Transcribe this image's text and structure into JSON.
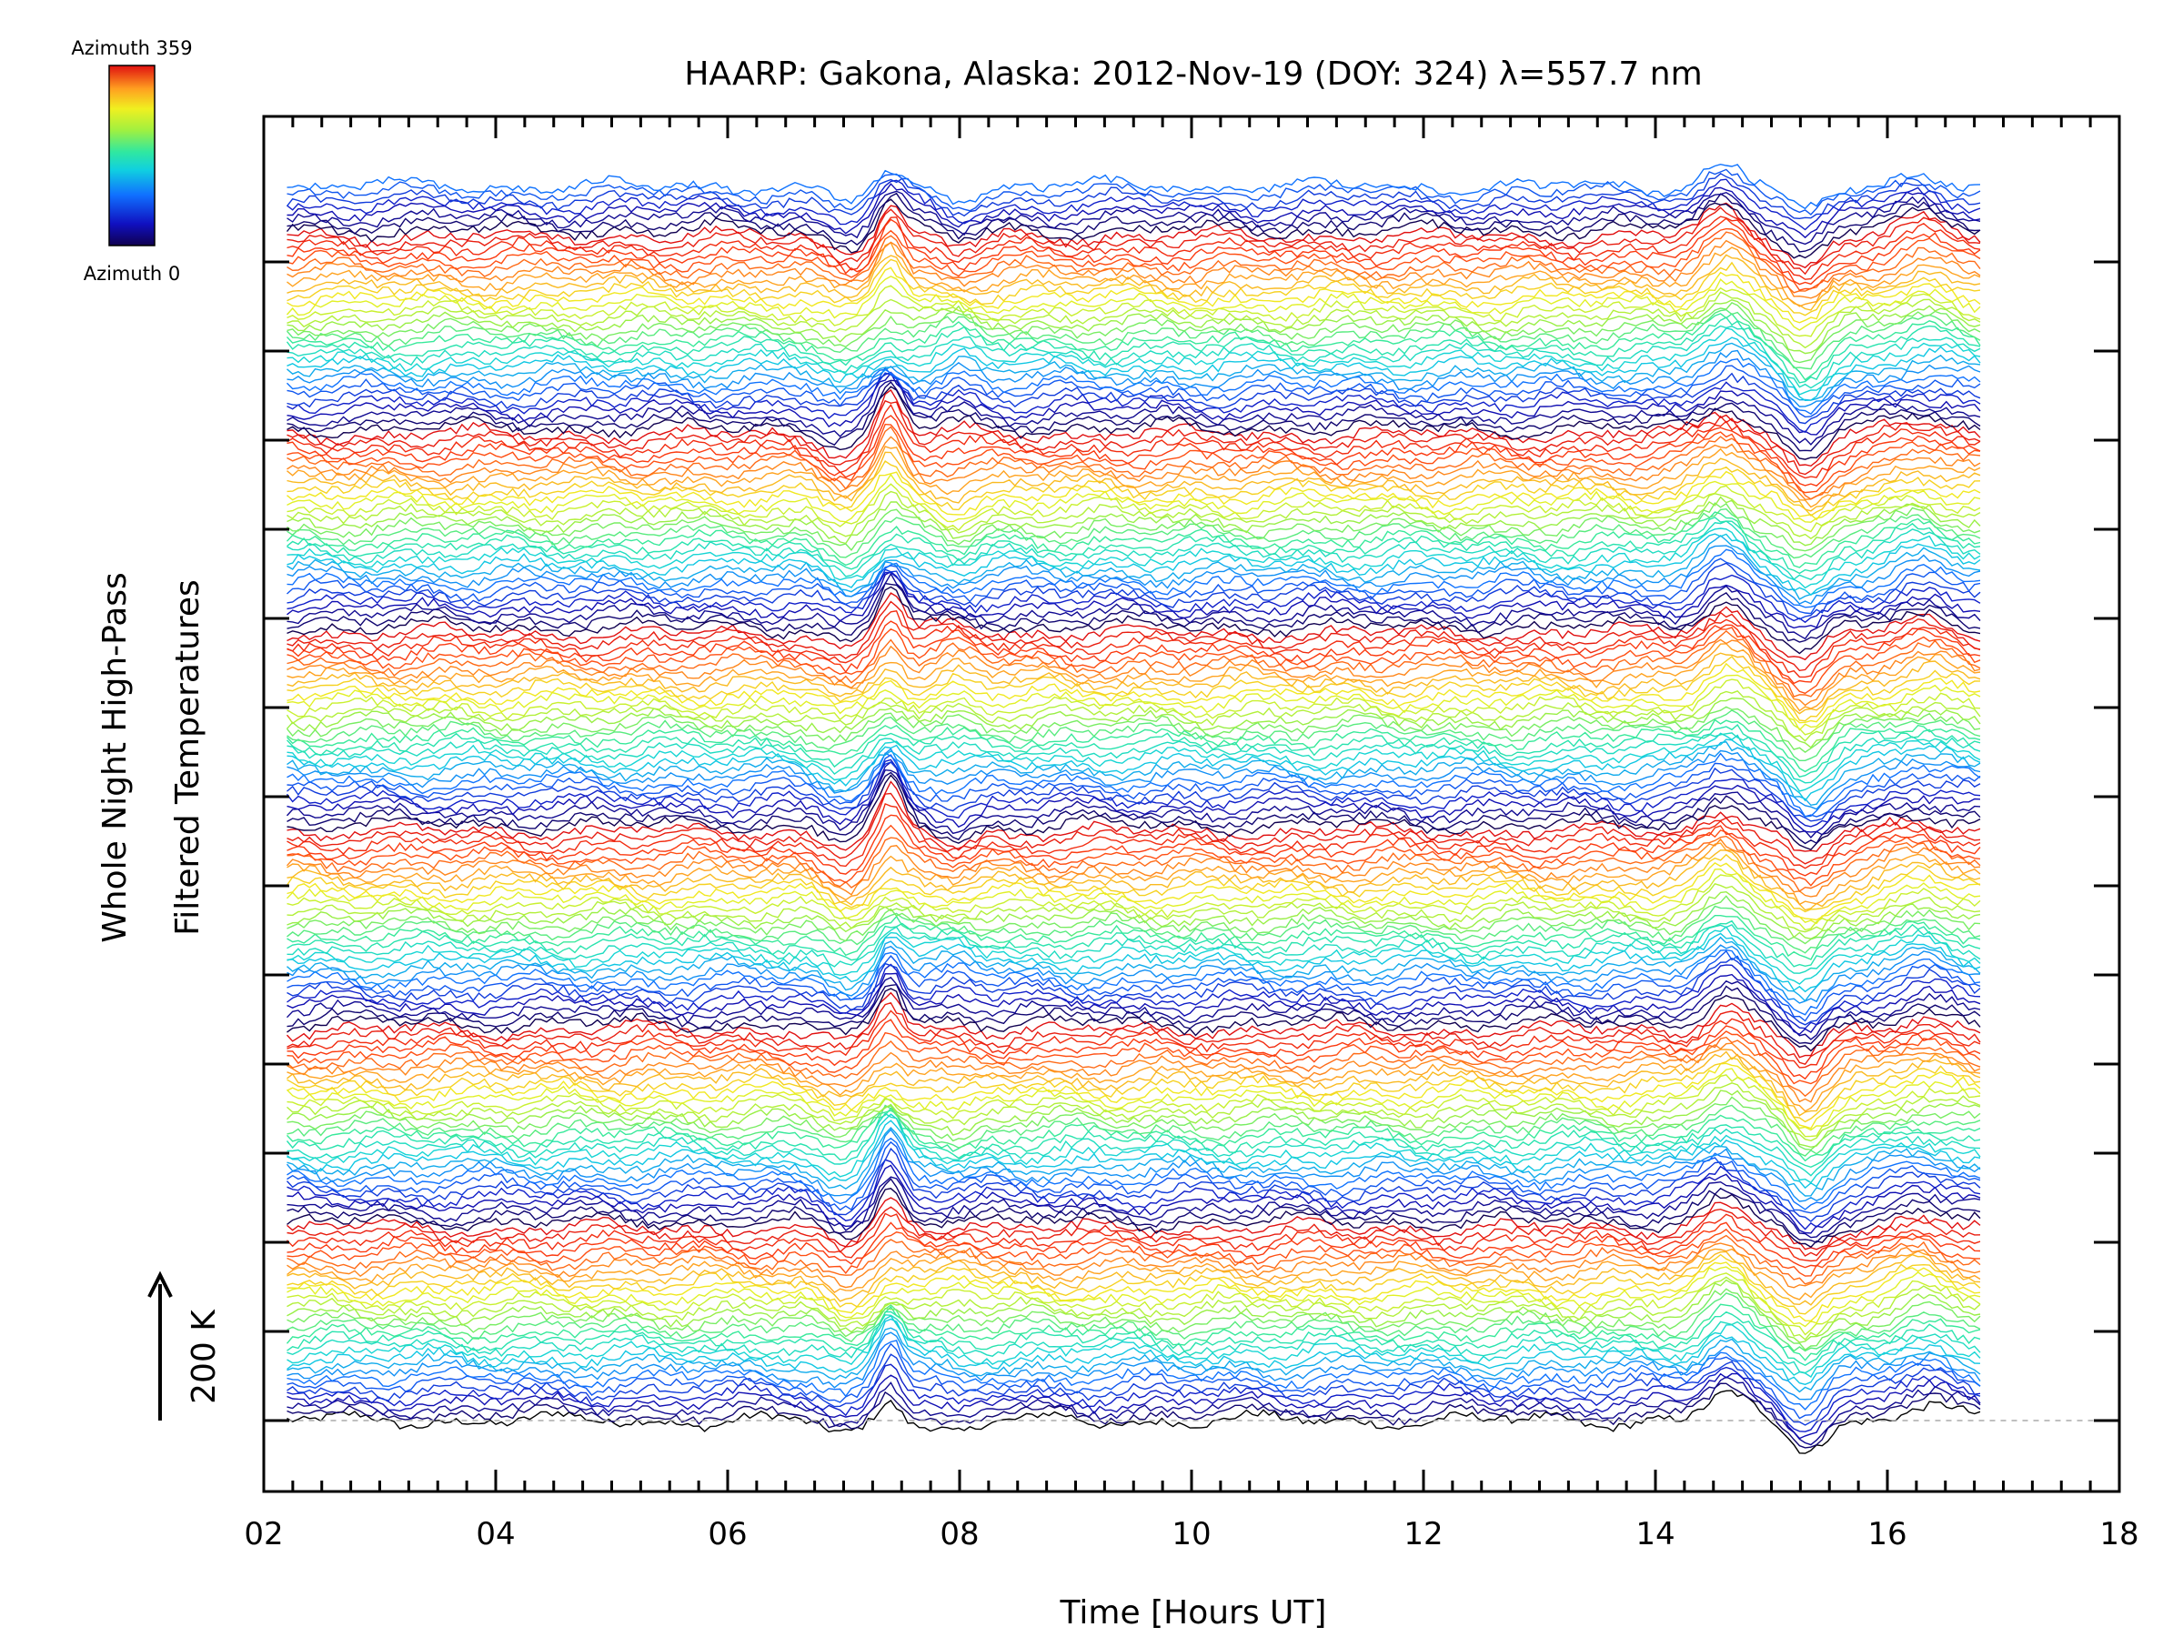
{
  "chart_data": {
    "type": "line",
    "title": "HAARP: Gakona,  Alaska: 2012-Nov-19 (DOY: 324) λ=557.7 nm",
    "xlabel": "Time [Hours UT]",
    "ylabel_line1": "Whole Night High-Pass",
    "ylabel_line2": "Filtered Temperatures",
    "scale_label": "200 K",
    "scale_kelvin": 200,
    "xlim": [
      2,
      18
    ],
    "x_ticks": [
      "02",
      "04",
      "06",
      "08",
      "10",
      "12",
      "14",
      "16",
      "18"
    ],
    "data_time_range": [
      2.2,
      16.8
    ],
    "trace_count": 200,
    "azimuth_range": [
      0,
      359
    ],
    "colorbar": {
      "top_label": "Azimuth 359",
      "bottom_label": "Azimuth 0",
      "colors": [
        "#100050",
        "#1010c0",
        "#1070ff",
        "#10d0e0",
        "#30e8a0",
        "#a0f040",
        "#f0f020",
        "#ffa020",
        "#ff4010",
        "#e01010"
      ]
    },
    "grid": false,
    "events": [
      {
        "hour": 7.4,
        "amplitude_K": 90
      },
      {
        "hour": 15.0,
        "amplitude_K": -60
      }
    ],
    "baseline_color": "#aaaaaa"
  }
}
